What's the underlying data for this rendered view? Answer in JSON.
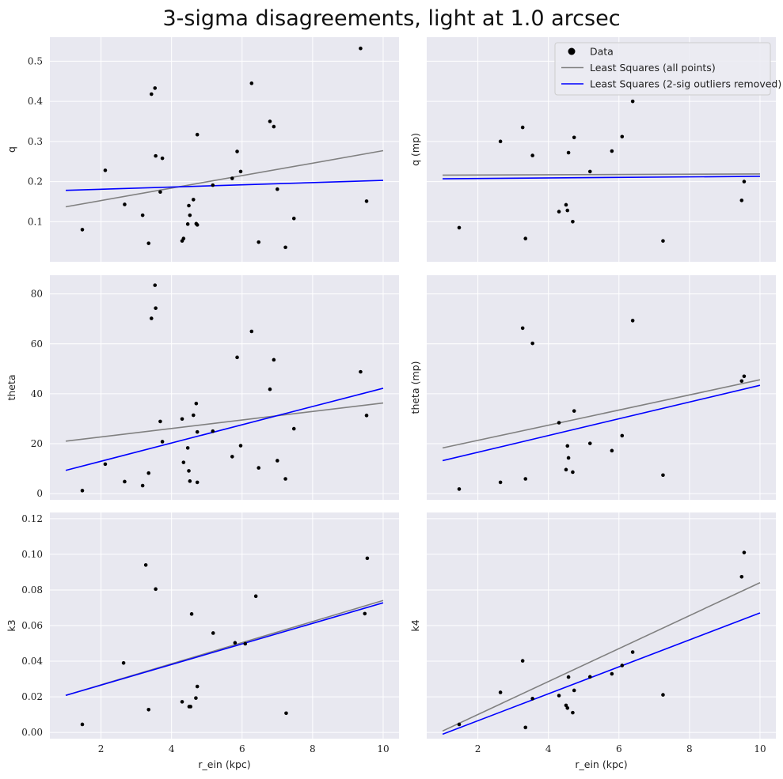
{
  "title": "3-sigma disagreements, light at 1.0 arcsec",
  "legend": {
    "placement": "top-right",
    "entries": [
      {
        "label": "Data",
        "kind": "marker",
        "color": "#000000"
      },
      {
        "label": "Least Squares (all points)",
        "kind": "line",
        "color": "#808080"
      },
      {
        "label": "Least Squares (2-sig outliers removed)",
        "kind": "line",
        "color": "#0000ff"
      }
    ]
  },
  "colors": {
    "background": "#e8e8f0",
    "grid": "#ffffff",
    "points": "#000000",
    "fit_all": "#808080",
    "fit_clean": "#0000ff"
  },
  "chart_data": [
    {
      "type": "scatter",
      "id": "q",
      "ylabel": "q",
      "xlabel": "",
      "grid": true,
      "xlim": [
        0.55,
        10.45
      ],
      "ylim": [
        -0.0,
        0.56
      ],
      "xticks": [],
      "xticklabels": [],
      "yticks": [
        0.1,
        0.2,
        0.3,
        0.4,
        0.5
      ],
      "yticklabels": [
        "0.1",
        "0.2",
        "0.3",
        "0.4",
        "0.5"
      ],
      "x": [
        1.47,
        2.12,
        2.67,
        3.18,
        3.35,
        3.43,
        3.53,
        3.55,
        3.68,
        3.74,
        4.3,
        4.34,
        4.46,
        4.49,
        4.52,
        4.62,
        4.7,
        4.73,
        4.73,
        5.17,
        5.72,
        5.86,
        5.96,
        6.27,
        6.47,
        6.79,
        6.9,
        7.0,
        7.23,
        7.47,
        9.36,
        9.53
      ],
      "y": [
        0.08,
        0.228,
        0.143,
        0.116,
        0.046,
        0.418,
        0.433,
        0.264,
        0.174,
        0.258,
        0.052,
        0.058,
        0.094,
        0.14,
        0.116,
        0.155,
        0.095,
        0.317,
        0.092,
        0.191,
        0.208,
        0.275,
        0.225,
        0.445,
        0.049,
        0.35,
        0.337,
        0.181,
        0.036,
        0.108,
        0.532,
        0.151
      ],
      "fits": [
        {
          "label": "Least Squares (all points)",
          "x": [
            1,
            10
          ],
          "y": [
            0.137,
            0.277
          ]
        },
        {
          "label": "Least Squares (2-sig outliers removed)",
          "x": [
            1,
            10
          ],
          "y": [
            0.178,
            0.203
          ]
        }
      ]
    },
    {
      "type": "scatter",
      "id": "q_mp",
      "ylabel": "q (mp)",
      "xlabel": "",
      "grid": true,
      "xlim": [
        0.55,
        10.45
      ],
      "ylim": [
        -0.0,
        0.56
      ],
      "xticks": [],
      "xticklabels": [],
      "yticks": [
        0.1,
        0.2,
        0.3,
        0.4,
        0.5
      ],
      "yticklabels": [],
      "x": [
        1.47,
        2.64,
        3.27,
        3.35,
        3.55,
        4.3,
        4.5,
        4.54,
        4.57,
        4.69,
        4.73,
        5.18,
        5.8,
        6.09,
        6.39,
        7.25,
        9.48,
        9.55
      ],
      "y": [
        0.085,
        0.3,
        0.335,
        0.058,
        0.265,
        0.125,
        0.142,
        0.128,
        0.272,
        0.1,
        0.31,
        0.225,
        0.276,
        0.312,
        0.4,
        0.052,
        0.153,
        0.2
      ],
      "fits": [
        {
          "label": "Least Squares (all points)",
          "x": [
            1,
            10
          ],
          "y": [
            0.216,
            0.219
          ]
        },
        {
          "label": "Least Squares (2-sig outliers removed)",
          "x": [
            1,
            10
          ],
          "y": [
            0.207,
            0.213
          ]
        }
      ]
    },
    {
      "type": "scatter",
      "id": "theta",
      "ylabel": "theta",
      "xlabel": "",
      "grid": true,
      "xlim": [
        0.55,
        10.45
      ],
      "ylim": [
        -2.5,
        87.5
      ],
      "xticks": [],
      "xticklabels": [],
      "yticks": [
        0,
        20,
        40,
        60,
        80
      ],
      "yticklabels": [
        "0",
        "20",
        "40",
        "60",
        "80"
      ],
      "x": [
        1.47,
        2.12,
        2.67,
        3.18,
        3.35,
        3.43,
        3.53,
        3.55,
        3.68,
        3.74,
        4.3,
        4.34,
        4.46,
        4.49,
        4.52,
        4.62,
        4.7,
        4.73,
        4.73,
        5.17,
        5.72,
        5.86,
        5.96,
        6.27,
        6.47,
        6.79,
        6.9,
        7.0,
        7.23,
        7.47,
        9.36,
        9.53
      ],
      "y": [
        1.2,
        11.8,
        4.8,
        3.2,
        8.2,
        70.2,
        83.5,
        74.3,
        28.9,
        20.8,
        29.9,
        12.5,
        18.3,
        9.1,
        5.0,
        31.4,
        36.1,
        24.7,
        4.5,
        25.0,
        14.8,
        54.6,
        19.2,
        65.0,
        10.3,
        41.8,
        53.6,
        13.2,
        5.9,
        26.0,
        48.8,
        31.3
      ],
      "fits": [
        {
          "label": "Least Squares (all points)",
          "x": [
            1,
            10
          ],
          "y": [
            21.0,
            36.3
          ]
        },
        {
          "label": "Least Squares (2-sig outliers removed)",
          "x": [
            1,
            10
          ],
          "y": [
            9.3,
            42.2
          ]
        }
      ]
    },
    {
      "type": "scatter",
      "id": "theta_mp",
      "ylabel": "theta (mp)",
      "xlabel": "",
      "grid": true,
      "xlim": [
        0.55,
        10.45
      ],
      "ylim": [
        -2.5,
        87.5
      ],
      "xticks": [],
      "xticklabels": [],
      "yticks": [
        0,
        20,
        40,
        60,
        80
      ],
      "yticklabels": [],
      "x": [
        1.47,
        2.64,
        3.27,
        3.35,
        3.55,
        4.3,
        4.5,
        4.54,
        4.57,
        4.69,
        4.73,
        5.18,
        5.8,
        6.09,
        6.39,
        7.25,
        9.48,
        9.55
      ],
      "y": [
        1.8,
        4.5,
        66.3,
        5.9,
        60.2,
        28.4,
        9.6,
        19.1,
        14.3,
        8.6,
        33.1,
        20.1,
        17.2,
        23.2,
        69.3,
        7.4,
        45.1,
        47.0
      ],
      "fits": [
        {
          "label": "Least Squares (all points)",
          "x": [
            1,
            10
          ],
          "y": [
            18.3,
            45.6
          ]
        },
        {
          "label": "Least Squares (2-sig outliers removed)",
          "x": [
            1,
            10
          ],
          "y": [
            13.2,
            43.4
          ]
        }
      ]
    },
    {
      "type": "scatter",
      "id": "k3",
      "ylabel": "k3",
      "xlabel": "r_ein (kpc)",
      "grid": true,
      "xlim": [
        0.55,
        10.45
      ],
      "ylim": [
        -0.0035,
        0.1235
      ],
      "xticks": [
        2,
        4,
        6,
        8,
        10
      ],
      "xticklabels": [
        "2",
        "4",
        "6",
        "8",
        "10"
      ],
      "yticks": [
        0.0,
        0.02,
        0.04,
        0.06,
        0.08,
        0.1,
        0.12
      ],
      "yticklabels": [
        "0.00",
        "0.02",
        "0.04",
        "0.06",
        "0.08",
        "0.10",
        "0.12"
      ],
      "x": [
        1.47,
        2.64,
        3.27,
        3.35,
        3.55,
        4.3,
        4.5,
        4.54,
        4.57,
        4.69,
        4.73,
        5.18,
        5.8,
        6.09,
        6.39,
        7.25,
        9.48,
        9.55
      ],
      "y": [
        0.0045,
        0.039,
        0.094,
        0.0128,
        0.0805,
        0.0172,
        0.0145,
        0.0145,
        0.0665,
        0.0193,
        0.0258,
        0.0558,
        0.0503,
        0.0498,
        0.0765,
        0.0108,
        0.0667,
        0.0978
      ],
      "fits": [
        {
          "label": "Least Squares (all points)",
          "x": [
            1,
            10
          ],
          "y": [
            0.0208,
            0.0741
          ]
        },
        {
          "label": "Least Squares (2-sig outliers removed)",
          "x": [
            1,
            10
          ],
          "y": [
            0.0208,
            0.0728
          ]
        }
      ]
    },
    {
      "type": "scatter",
      "id": "k4",
      "ylabel": "k4",
      "xlabel": "r_ein (kpc)",
      "grid": true,
      "xlim": [
        0.55,
        10.45
      ],
      "ylim": [
        -0.0035,
        0.1235
      ],
      "xticks": [
        2,
        4,
        6,
        8,
        10
      ],
      "xticklabels": [
        "2",
        "4",
        "6",
        "8",
        "10"
      ],
      "yticks": [
        0.0,
        0.02,
        0.04,
        0.06,
        0.08,
        0.1,
        0.12
      ],
      "yticklabels": [],
      "x": [
        1.47,
        2.64,
        3.27,
        3.35,
        3.55,
        4.3,
        4.5,
        4.54,
        4.57,
        4.69,
        4.73,
        5.18,
        5.8,
        6.09,
        6.39,
        7.25,
        9.48,
        9.55
      ],
      "y": [
        0.0045,
        0.0225,
        0.0402,
        0.0028,
        0.019,
        0.0207,
        0.0152,
        0.0137,
        0.0311,
        0.0111,
        0.0236,
        0.0312,
        0.0329,
        0.0376,
        0.0451,
        0.0211,
        0.0874,
        0.101
      ],
      "fits": [
        {
          "label": "Least Squares (all points)",
          "x": [
            1,
            10
          ],
          "y": [
            0.0008,
            0.0841
          ]
        },
        {
          "label": "Least Squares (2-sig outliers removed)",
          "x": [
            1,
            10
          ],
          "y": [
            -0.001,
            0.0671
          ]
        }
      ]
    }
  ]
}
